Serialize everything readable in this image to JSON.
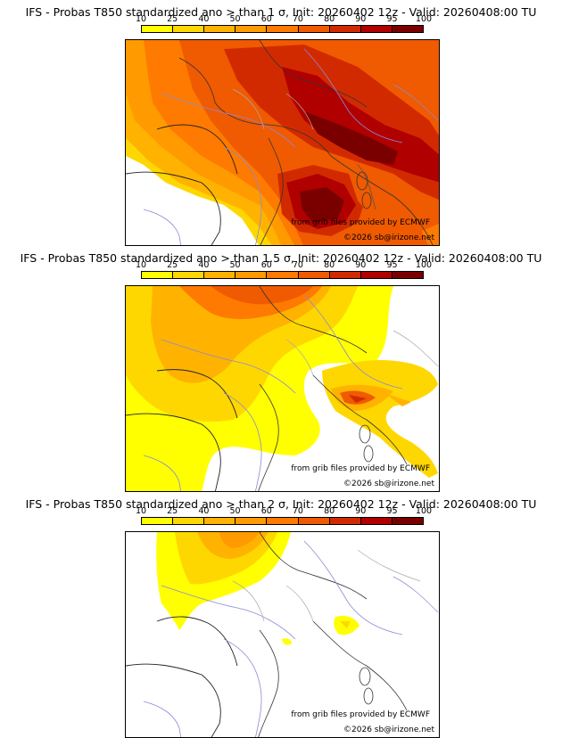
{
  "colorbar": {
    "ticks": [
      "10",
      "25",
      "40",
      "50",
      "60",
      "70",
      "80",
      "90",
      "95",
      "100"
    ],
    "colors": [
      "#ffff00",
      "#ffd700",
      "#ffb300",
      "#ff9a00",
      "#ff7a00",
      "#f05a00",
      "#d22a00",
      "#b00000",
      "#7a0000"
    ]
  },
  "panels": [
    {
      "title": "IFS - Probas T850  standardized ano > than 1 σ, Init: 20260402 12z - Valid: 20260408:00 TU",
      "credit1": "from grib files provided by ECMWF",
      "credit2": "©2026 sb@irizone.net"
    },
    {
      "title": "IFS - Probas T850  standardized ano > than 1.5 σ, Init: 20260402 12z - Valid: 20260408:00 TU",
      "credit1": "from grib files provided by ECMWF",
      "credit2": "©2026 sb@irizone.net"
    },
    {
      "title": "IFS - Probas T850  standardized ano > than 2 σ, Init: 20260402 12z - Valid: 20260408:00 TU",
      "credit1": "from grib files provided by ECMWF",
      "credit2": "©2026 sb@irizone.net"
    }
  ]
}
